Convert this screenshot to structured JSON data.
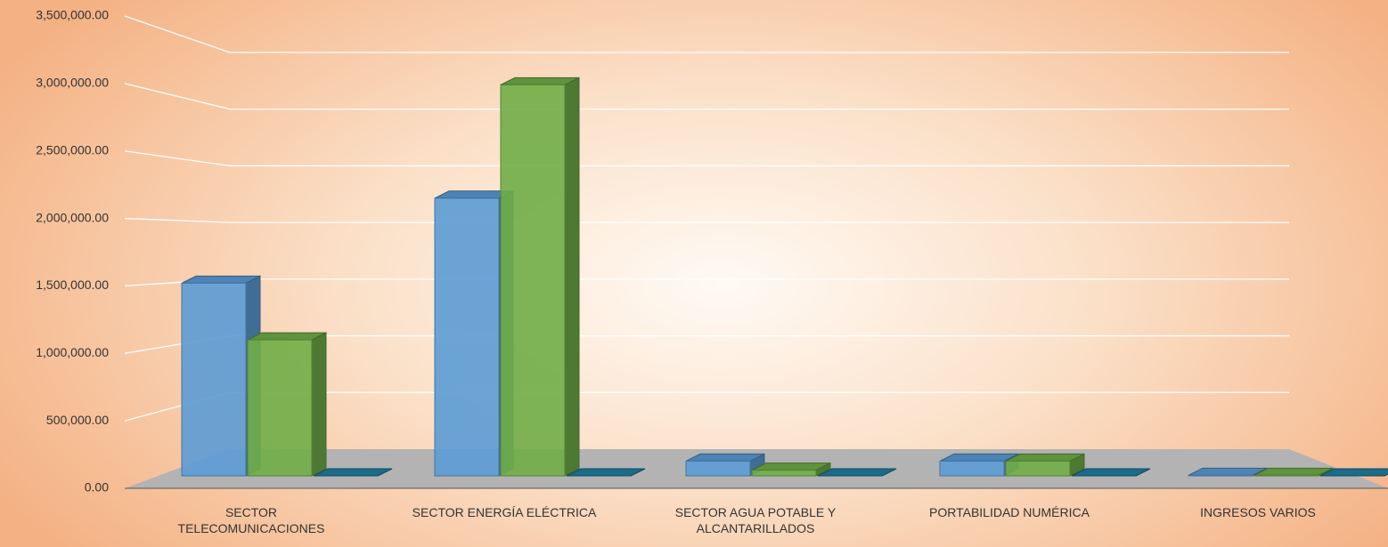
{
  "chart_data": {
    "type": "bar3d",
    "categories": [
      "SECTOR TELECOMUNICACIONES",
      "SECTOR ENERGÍA ELÉCTRICA",
      "SECTOR AGUA POTABLE Y ALCANTARILLADOS",
      "PORTABILIDAD NUMÉRICA",
      "INGRESOS VARIOS"
    ],
    "series": [
      {
        "color": "#5b9bd5",
        "values": [
          1700000,
          2450000,
          130000,
          130000,
          5000
        ]
      },
      {
        "color": "#70ad47",
        "values": [
          1200000,
          3450000,
          50000,
          130000,
          5000
        ]
      },
      {
        "color": "#1f7fa0",
        "values": [
          0,
          0,
          0,
          0,
          0
        ]
      }
    ],
    "ylim": [
      0,
      3500000
    ],
    "yticks": [
      {
        "value": 0,
        "label": "0.00"
      },
      {
        "value": 500000,
        "label": "500,000.00"
      },
      {
        "value": 1000000,
        "label": "1,000,000.00"
      },
      {
        "value": 1500000,
        "label": "1,500,000.00"
      },
      {
        "value": 2000000,
        "label": "2,000,000.00"
      },
      {
        "value": 2500000,
        "label": "2,500,000.00"
      },
      {
        "value": 3000000,
        "label": "3,000,000.00"
      },
      {
        "value": 3500000,
        "label": "3,500,000.00"
      }
    ],
    "grid": true
  }
}
